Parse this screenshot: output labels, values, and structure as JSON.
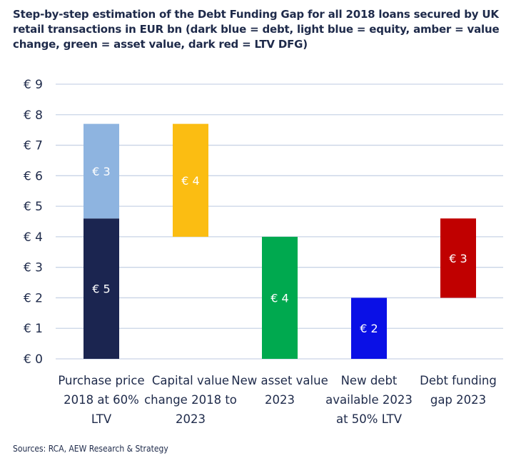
{
  "title": "Step-by-step estimation of the Debt Funding Gap for all 2018 loans secured by UK retail transactions in EUR bn (dark blue = debt, light blue = equity, amber = value change, green = asset value, dark red = LTV DFG)",
  "source": "Sources: RCA, AEW Research & Strategy",
  "chart_data": {
    "type": "bar",
    "subtype": "waterfall",
    "ylim": [
      0,
      9
    ],
    "yticks": [
      {
        "value": 0,
        "label": "€ 0"
      },
      {
        "value": 1,
        "label": "€ 1"
      },
      {
        "value": 2,
        "label": "€ 2"
      },
      {
        "value": 3,
        "label": "€ 3"
      },
      {
        "value": 4,
        "label": "€ 4"
      },
      {
        "value": 5,
        "label": "€ 5"
      },
      {
        "value": 6,
        "label": "€ 6"
      },
      {
        "value": 7,
        "label": "€ 7"
      },
      {
        "value": 8,
        "label": "€ 8"
      },
      {
        "value": 9,
        "label": "€ 9"
      }
    ],
    "grid": true,
    "categories": [
      {
        "lines": [
          "Purchase price",
          "2018 at 60%",
          "LTV"
        ]
      },
      {
        "lines": [
          "Capital value",
          "change 2018 to",
          "2023"
        ]
      },
      {
        "lines": [
          "New asset value",
          "2023"
        ]
      },
      {
        "lines": [
          "New debt",
          "available 2023",
          "at 50% LTV"
        ]
      },
      {
        "lines": [
          "Debt funding",
          "gap 2023"
        ]
      }
    ],
    "segments": [
      {
        "category": 0,
        "base": 0,
        "top": 4.6,
        "color": "#1b2550",
        "label": "€ 5"
      },
      {
        "category": 0,
        "base": 4.6,
        "top": 7.7,
        "color": "#8eb4e0",
        "label": "€ 3"
      },
      {
        "category": 1,
        "base": 4.0,
        "top": 7.7,
        "color": "#fbbd12",
        "label": "€ 4"
      },
      {
        "category": 2,
        "base": 0,
        "top": 4.0,
        "color": "#00a94f",
        "label": "€ 4"
      },
      {
        "category": 3,
        "base": 0,
        "top": 2.0,
        "color": "#0a10e6",
        "label": "€ 2"
      },
      {
        "category": 4,
        "base": 2.0,
        "top": 4.6,
        "color": "#c00000",
        "label": "€ 3"
      }
    ]
  }
}
